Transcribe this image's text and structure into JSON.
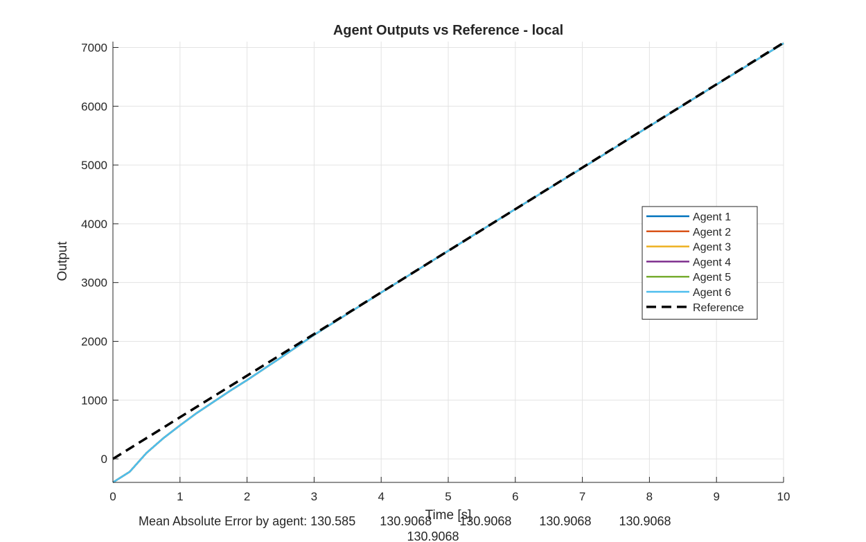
{
  "chart_data": {
    "type": "line",
    "title": "Agent Outputs vs Reference - local",
    "xlabel": "Time [s]",
    "ylabel": "Output",
    "xlim": [
      0,
      10
    ],
    "ylim": [
      -400,
      7100
    ],
    "xticks": [
      0,
      1,
      2,
      3,
      4,
      5,
      6,
      7,
      8,
      9,
      10
    ],
    "yticks": [
      0,
      1000,
      2000,
      3000,
      4000,
      5000,
      6000,
      7000
    ],
    "grid": true,
    "legend_position": "right",
    "x": [
      0,
      0.25,
      0.5,
      0.75,
      1,
      1.25,
      1.5,
      1.75,
      2,
      2.5,
      3,
      4,
      5,
      6,
      7,
      8,
      9,
      10
    ],
    "series": [
      {
        "name": "Agent 1",
        "color": "#0072BD",
        "style": "solid",
        "values": [
          -400,
          -220,
          100,
          350,
          570,
          780,
          970,
          1160,
          1340,
          1720,
          2110,
          2830,
          3540,
          4250,
          4950,
          5660,
          6370,
          7070
        ]
      },
      {
        "name": "Agent 2",
        "color": "#D95319",
        "style": "solid",
        "values": [
          -400,
          -220,
          100,
          350,
          570,
          780,
          970,
          1160,
          1340,
          1720,
          2110,
          2830,
          3540,
          4250,
          4950,
          5660,
          6370,
          7070
        ]
      },
      {
        "name": "Agent 3",
        "color": "#EDB120",
        "style": "solid",
        "values": [
          -400,
          -220,
          100,
          350,
          570,
          780,
          970,
          1160,
          1340,
          1720,
          2110,
          2830,
          3540,
          4250,
          4950,
          5660,
          6370,
          7070
        ]
      },
      {
        "name": "Agent 4",
        "color": "#7E2F8E",
        "style": "solid",
        "values": [
          -400,
          -220,
          100,
          350,
          570,
          780,
          970,
          1160,
          1340,
          1720,
          2110,
          2830,
          3540,
          4250,
          4950,
          5660,
          6370,
          7070
        ]
      },
      {
        "name": "Agent 5",
        "color": "#77AC30",
        "style": "solid",
        "values": [
          -400,
          -220,
          100,
          350,
          570,
          780,
          970,
          1160,
          1340,
          1720,
          2110,
          2830,
          3540,
          4250,
          4950,
          5660,
          6370,
          7070
        ]
      },
      {
        "name": "Agent 6",
        "color": "#4DBEEE",
        "style": "solid",
        "values": [
          -400,
          -220,
          100,
          350,
          570,
          780,
          970,
          1160,
          1340,
          1720,
          2110,
          2830,
          3540,
          4250,
          4950,
          5660,
          6370,
          7070
        ]
      },
      {
        "name": "Reference",
        "color": "#000000",
        "style": "dashed",
        "values": [
          0,
          177,
          354,
          531,
          708,
          885,
          1062,
          1239,
          1416,
          1770,
          2124,
          2832,
          3540,
          4248,
          4956,
          5664,
          6372,
          7080
        ]
      }
    ],
    "annotation": {
      "line1": "Mean Absolute Error by agent: 130.585       130.9068        130.9068        130.9068        130.9068",
      "line2": "130.9068"
    }
  }
}
